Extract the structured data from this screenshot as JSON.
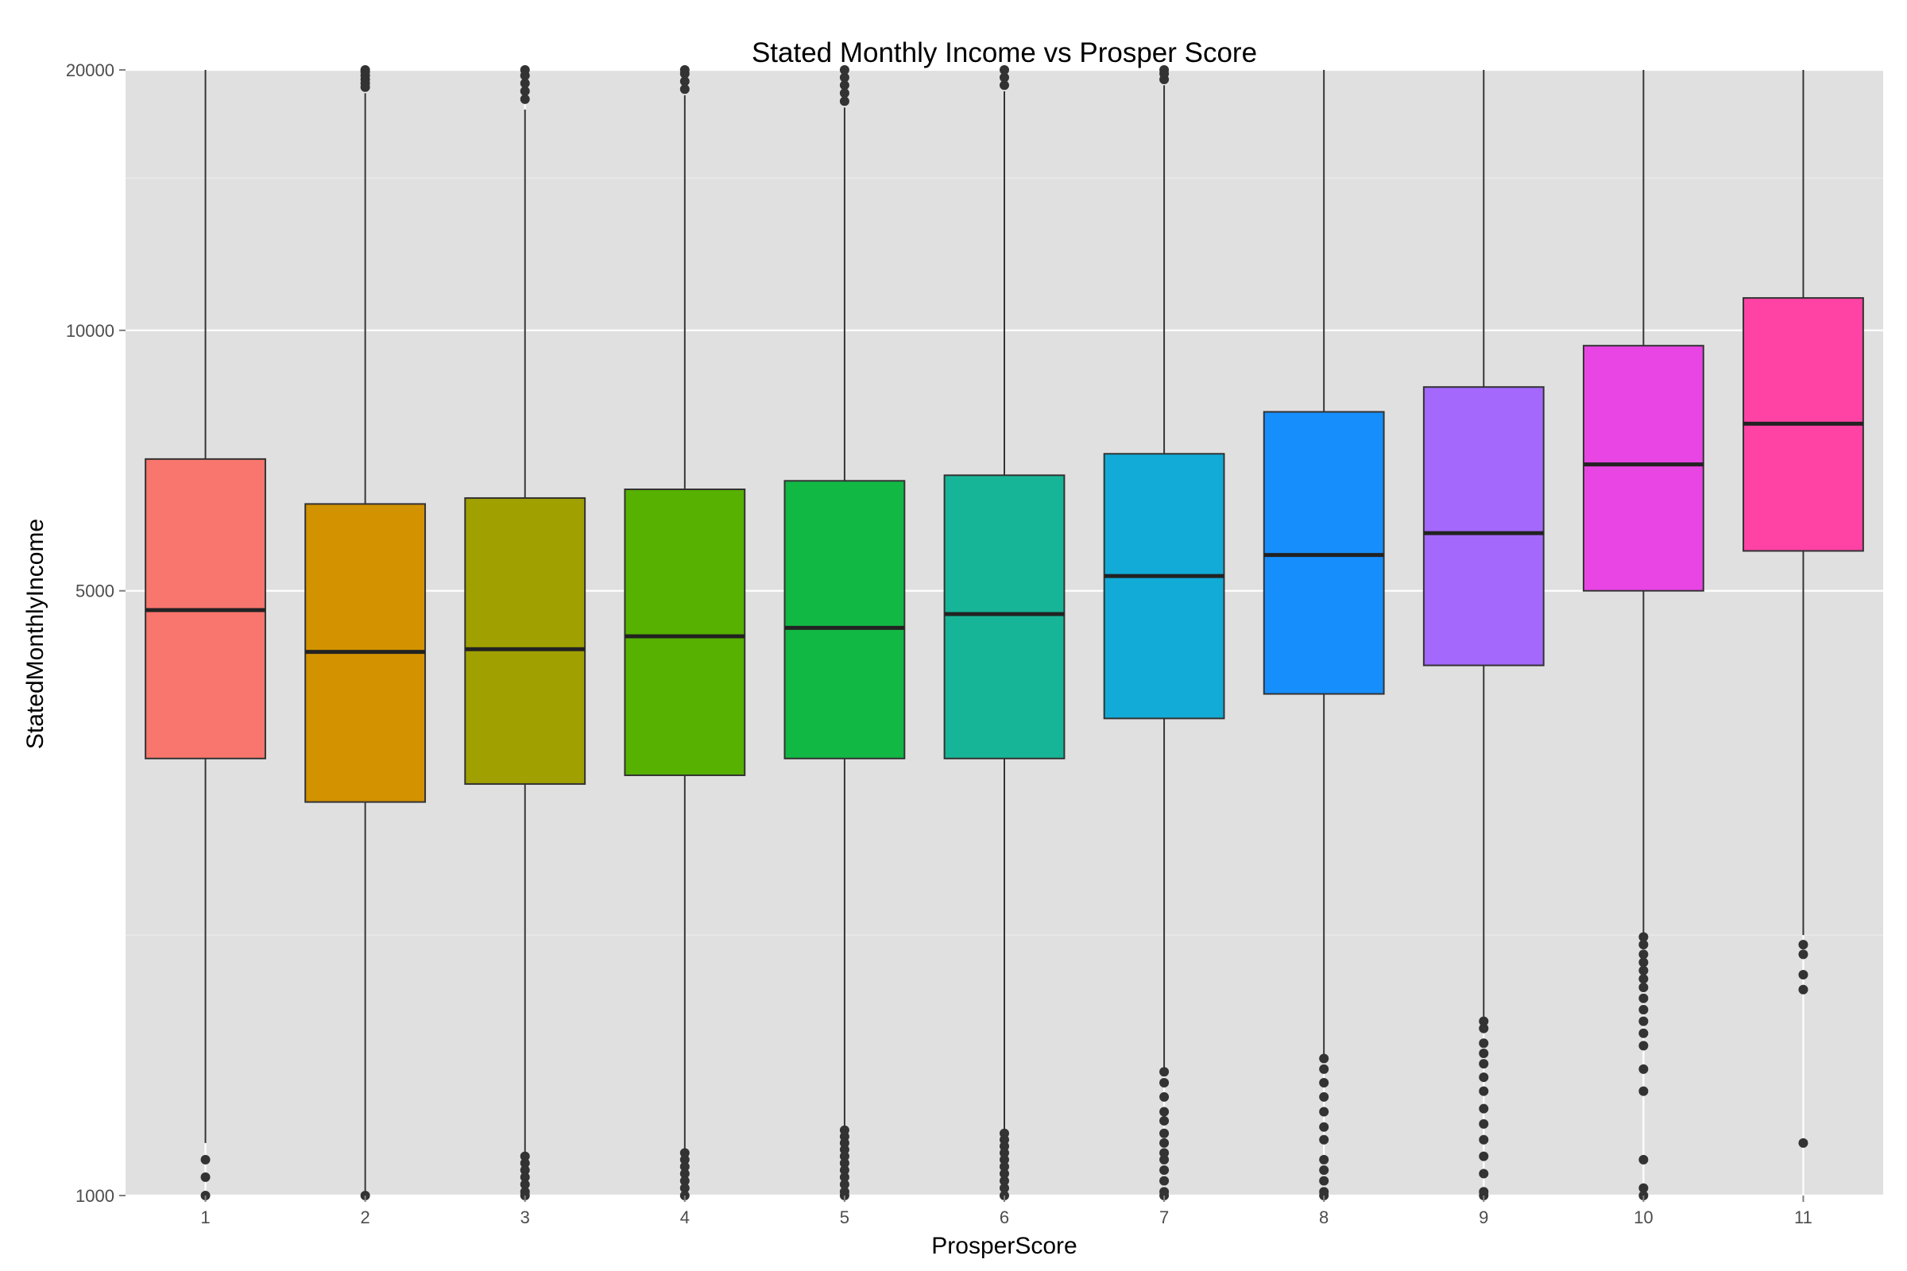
{
  "chart_data": {
    "type": "box",
    "title": "Stated Monthly Income vs Prosper Score",
    "xlabel": "ProsperScore",
    "ylabel": "StatedMonthlyIncome",
    "y_scale": "log",
    "ylim": [
      1000,
      20000
    ],
    "y_ticks": [
      1000,
      5000,
      10000,
      20000
    ],
    "y_tick_labels": [
      "1000",
      "5000",
      "10000",
      "20000"
    ],
    "y_minor_gridlines": [
      2000,
      15000
    ],
    "grid": true,
    "legend": "none",
    "panel_color": "#e0e0e0",
    "box_outline_color": "#333333",
    "categories": [
      "1",
      "2",
      "3",
      "4",
      "5",
      "6",
      "7",
      "8",
      "9",
      "10",
      "11"
    ],
    "boxes": [
      {
        "category": "1",
        "color": "#f8766d",
        "q1": 3200,
        "median": 4750,
        "q3": 7100,
        "whisker_low": 1150,
        "whisker_high": 20000,
        "outliers_low": [
          1100,
          1050,
          1000
        ],
        "outliers_high": []
      },
      {
        "category": "2",
        "color": "#d39200",
        "q1": 2850,
        "median": 4250,
        "q3": 6300,
        "whisker_low": 1000,
        "whisker_high": 18800,
        "outliers_low": [
          1000
        ],
        "outliers_high": [
          19100,
          19300,
          19500,
          19700,
          19900,
          20000
        ]
      },
      {
        "category": "3",
        "color": "#a0a000",
        "q1": 2990,
        "median": 4280,
        "q3": 6400,
        "whisker_low": 1120,
        "whisker_high": 18000,
        "outliers_low": [
          1110,
          1090,
          1070,
          1050,
          1030,
          1010,
          1000
        ],
        "outliers_high": [
          18500,
          18900,
          19300,
          19700,
          20000
        ]
      },
      {
        "category": "4",
        "color": "#56b100",
        "q1": 3060,
        "median": 4430,
        "q3": 6550,
        "whisker_low": 1130,
        "whisker_high": 18700,
        "outliers_low": [
          1120,
          1100,
          1080,
          1060,
          1040,
          1020,
          1000
        ],
        "outliers_high": [
          19000,
          19400,
          19800,
          20000
        ]
      },
      {
        "category": "5",
        "color": "#12b844",
        "q1": 3200,
        "median": 4530,
        "q3": 6700,
        "whisker_low": 1200,
        "whisker_high": 18100,
        "outliers_low": [
          1190,
          1170,
          1150,
          1130,
          1110,
          1090,
          1070,
          1050,
          1030,
          1010,
          1000
        ],
        "outliers_high": [
          18400,
          18800,
          19200,
          19600,
          20000
        ]
      },
      {
        "category": "6",
        "color": "#17b597",
        "q1": 3200,
        "median": 4700,
        "q3": 6800,
        "whisker_low": 1190,
        "whisker_high": 18900,
        "outliers_low": [
          1180,
          1160,
          1140,
          1120,
          1100,
          1080,
          1060,
          1040,
          1020,
          1000
        ],
        "outliers_high": [
          19200,
          19600,
          20000
        ]
      },
      {
        "category": "7",
        "color": "#12abd7",
        "q1": 3560,
        "median": 5200,
        "q3": 7200,
        "whisker_low": 1400,
        "whisker_high": 19200,
        "outliers_low": [
          1390,
          1350,
          1300,
          1250,
          1220,
          1180,
          1150,
          1120,
          1100,
          1070,
          1040,
          1010,
          1000
        ],
        "outliers_high": [
          19500,
          19800,
          20000
        ]
      },
      {
        "category": "8",
        "color": "#168ffd",
        "q1": 3800,
        "median": 5500,
        "q3": 8050,
        "whisker_low": 1450,
        "whisker_high": 20000,
        "outliers_low": [
          1440,
          1400,
          1350,
          1300,
          1250,
          1200,
          1160,
          1100,
          1070,
          1040,
          1010,
          1000
        ],
        "outliers_high": []
      },
      {
        "category": "9",
        "color": "#a468fd",
        "q1": 4100,
        "median": 5830,
        "q3": 8600,
        "whisker_low": 1600,
        "whisker_high": 20000,
        "outliers_low": [
          1590,
          1560,
          1500,
          1460,
          1420,
          1370,
          1320,
          1260,
          1210,
          1160,
          1110,
          1060,
          1010,
          1000
        ],
        "outliers_high": []
      },
      {
        "category": "10",
        "color": "#e845e4",
        "q1": 5000,
        "median": 7000,
        "q3": 9600,
        "whisker_low": 2000,
        "whisker_high": 20000,
        "outliers_low": [
          1990,
          1950,
          1900,
          1860,
          1820,
          1780,
          1740,
          1690,
          1640,
          1590,
          1540,
          1490,
          1400,
          1320,
          1100,
          1020,
          1000
        ],
        "outliers_high": []
      },
      {
        "category": "11",
        "color": "#fe43a5",
        "q1": 5560,
        "median": 7800,
        "q3": 10900,
        "whisker_low": 2000,
        "whisker_high": 20000,
        "outliers_low": [
          1950,
          1900,
          1800,
          1730,
          1150
        ],
        "outliers_high": []
      }
    ]
  }
}
